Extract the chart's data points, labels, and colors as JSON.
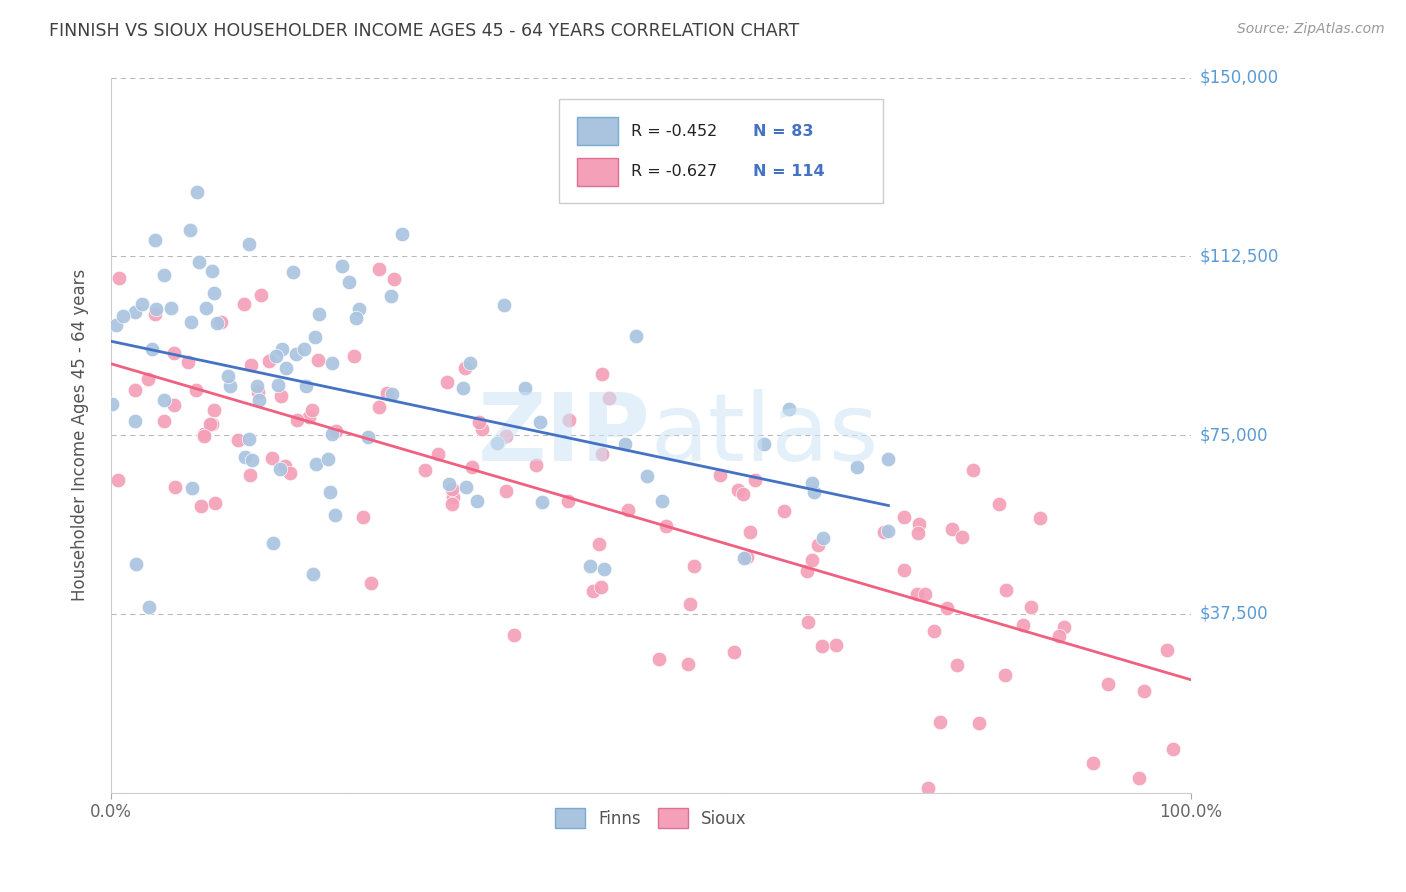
{
  "title": "FINNISH VS SIOUX HOUSEHOLDER INCOME AGES 45 - 64 YEARS CORRELATION CHART",
  "source": "Source: ZipAtlas.com",
  "ylabel": "Householder Income Ages 45 - 64 years",
  "xlim": [
    0,
    100
  ],
  "ylim": [
    0,
    150000
  ],
  "yticks": [
    0,
    37500,
    75000,
    112500,
    150000
  ],
  "ytick_labels": [
    "",
    "$37,500",
    "$75,000",
    "$112,500",
    "$150,000"
  ],
  "xtick_labels": [
    "0.0%",
    "100.0%"
  ],
  "legend_r_finns": "-0.452",
  "legend_n_finns": "83",
  "legend_r_sioux": "-0.627",
  "legend_n_sioux": "114",
  "finns_color": "#aac4e0",
  "sioux_color": "#f4a0b8",
  "finns_line_color": "#4472c4",
  "sioux_line_color": "#f06080",
  "background_color": "#ffffff",
  "grid_color": "#b8b8b8",
  "title_color": "#404040",
  "axis_label_color": "#5b9bd5",
  "r_value_color": "#cc0066",
  "n_value_color": "#4472c4"
}
